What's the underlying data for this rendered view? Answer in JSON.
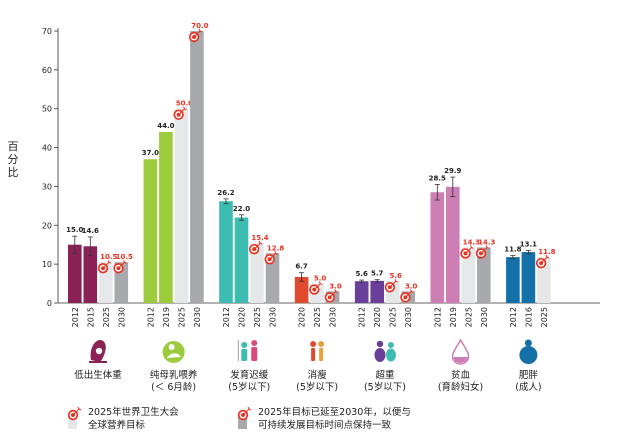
{
  "chart_data": {
    "type": "bar",
    "ylabel": "百分比",
    "ylim": [
      0,
      70
    ],
    "yticks": [
      0,
      10,
      20,
      30,
      40,
      50,
      60,
      70
    ],
    "target_icon": "target-arrow-icon",
    "groups": [
      {
        "id": "low-birth-weight",
        "label": [
          "低出生体重"
        ],
        "icon": "baby-in-womb-icon",
        "color": "#8B2255",
        "bars": [
          {
            "year": "2012",
            "value": 15.0,
            "kind": "actual",
            "error": 2.2
          },
          {
            "year": "2015",
            "value": 14.6,
            "kind": "actual",
            "error": 2.4
          },
          {
            "year": "2025",
            "value": 10.5,
            "kind": "target2025"
          },
          {
            "year": "2030",
            "value": 10.5,
            "kind": "target2030"
          }
        ]
      },
      {
        "id": "exclusive-breastfeeding",
        "label": [
          "纯母乳喂养",
          "(＜ 6月龄)"
        ],
        "icon": "breastfeeding-icon",
        "color": "#9CCB3C",
        "bars": [
          {
            "year": "2012",
            "value": 37.0,
            "kind": "actual"
          },
          {
            "year": "2019",
            "value": 44.0,
            "kind": "actual"
          },
          {
            "year": "2025",
            "value": 50.0,
            "kind": "target2025"
          },
          {
            "year": "2030",
            "value": 70.0,
            "kind": "target2030"
          }
        ]
      },
      {
        "id": "stunting",
        "label": [
          "发育迟缓",
          "(5岁以下)"
        ],
        "icon": "children-height-icon",
        "color": "#3DBDB2",
        "bars": [
          {
            "year": "2012",
            "value": 26.2,
            "kind": "actual",
            "error": 0.6
          },
          {
            "year": "2020",
            "value": 22.0,
            "kind": "actual",
            "error": 0.7
          },
          {
            "year": "2025",
            "value": 15.4,
            "kind": "target2025"
          },
          {
            "year": "2030",
            "value": 12.8,
            "kind": "target2030"
          }
        ]
      },
      {
        "id": "wasting",
        "label": [
          "消瘦",
          "(5岁以下)"
        ],
        "icon": "thin-children-icon",
        "color": "#E04A2F",
        "bars": [
          {
            "year": "2020",
            "value": 6.7,
            "kind": "actual",
            "error": 1.1
          },
          {
            "year": "2025",
            "value": 5.0,
            "kind": "target2025"
          },
          {
            "year": "2030",
            "value": 3.0,
            "kind": "target2030"
          }
        ]
      },
      {
        "id": "overweight",
        "label": [
          "超重",
          "(5岁以下)"
        ],
        "icon": "overweight-children-icon",
        "color": "#6A3F9A",
        "bars": [
          {
            "year": "2012",
            "value": 5.6,
            "kind": "actual",
            "error": 0.3
          },
          {
            "year": "2020",
            "value": 5.7,
            "kind": "actual",
            "error": 0.3
          },
          {
            "year": "2025",
            "value": 5.6,
            "kind": "target2025"
          },
          {
            "year": "2030",
            "value": 3.0,
            "kind": "target2030"
          }
        ]
      },
      {
        "id": "anaemia",
        "label": [
          "贫血",
          "(育龄妇女)"
        ],
        "icon": "blood-drop-icon",
        "color": "#CD7EB4",
        "bars": [
          {
            "year": "2012",
            "value": 28.5,
            "kind": "actual",
            "error": 2.0
          },
          {
            "year": "2019",
            "value": 29.9,
            "kind": "actual",
            "error": 2.5
          },
          {
            "year": "2025",
            "value": 14.3,
            "kind": "target2025"
          },
          {
            "year": "2030",
            "value": 14.3,
            "kind": "target2030"
          }
        ]
      },
      {
        "id": "obesity",
        "label": [
          "肥胖",
          "(成人)"
        ],
        "icon": "obese-person-icon",
        "color": "#1471A8",
        "bars": [
          {
            "year": "2012",
            "value": 11.8,
            "kind": "actual",
            "error": 0.4
          },
          {
            "year": "2016",
            "value": 13.1,
            "kind": "actual",
            "error": 0.4
          },
          {
            "year": "2025",
            "value": 11.8,
            "kind": "target2025"
          }
        ]
      }
    ]
  },
  "legend": {
    "target2025": [
      "2025年世界卫生大会",
      "全球营养目标"
    ],
    "target2030": [
      "2025年目标已延至2030年，以便与",
      "可持续发展目标时间点保持一致"
    ]
  },
  "colors": {
    "target2025_bar": "#E6E7E8",
    "target2030_bar": "#A7A9AC",
    "target_label": "#E63323",
    "axis": "#333333"
  }
}
